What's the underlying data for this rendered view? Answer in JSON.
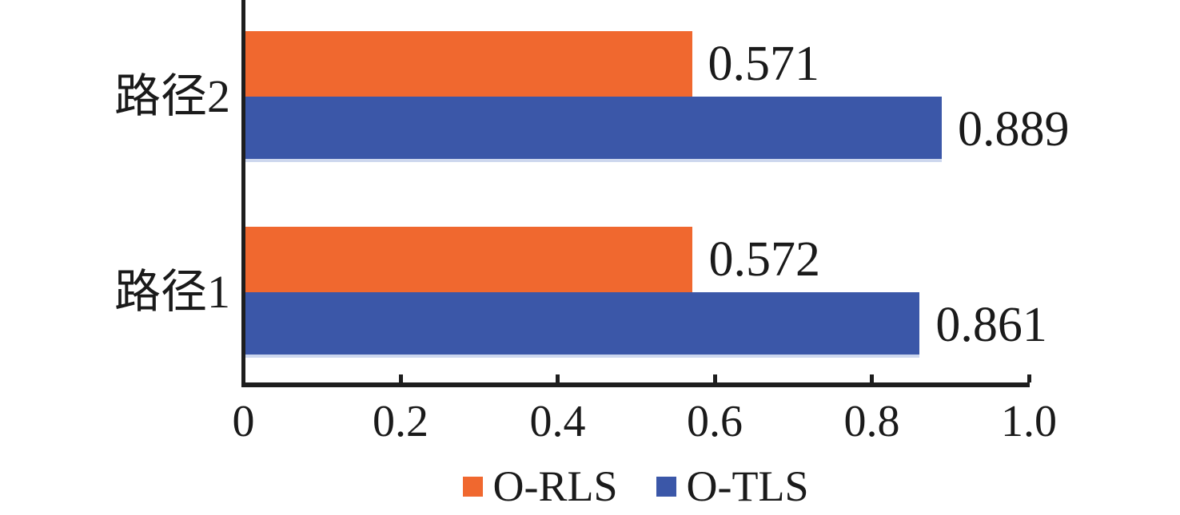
{
  "chart_data": {
    "type": "bar",
    "orientation": "horizontal",
    "title": "",
    "xlabel": "",
    "ylabel": "",
    "categories": [
      "路径2",
      "路径1"
    ],
    "series": [
      {
        "name": "O-RLS",
        "color": "#F0682F",
        "values": [
          0.571,
          0.572
        ],
        "value_labels": [
          "0.571",
          "0.572"
        ]
      },
      {
        "name": "O-TLS",
        "color": "#3B57A8",
        "bottom_edge_color": "#cdd7ee",
        "values": [
          0.889,
          0.861
        ],
        "value_labels": [
          "0.889",
          "0.861"
        ]
      }
    ],
    "x_axis": {
      "min": 0,
      "max": 1.0,
      "tick_values": [
        0,
        0.2,
        0.4,
        0.6,
        0.8,
        1.0
      ],
      "tick_labels": [
        "0",
        "0.2",
        "0.4",
        "0.6",
        "0.8",
        "1.0"
      ]
    },
    "legend": {
      "position": "bottom",
      "entries": [
        "O-RLS",
        "O-TLS"
      ]
    },
    "grid": false,
    "axis_color": "#1e1e1e",
    "text_color": "#1a1a1a",
    "background_color": "#ffffff"
  }
}
